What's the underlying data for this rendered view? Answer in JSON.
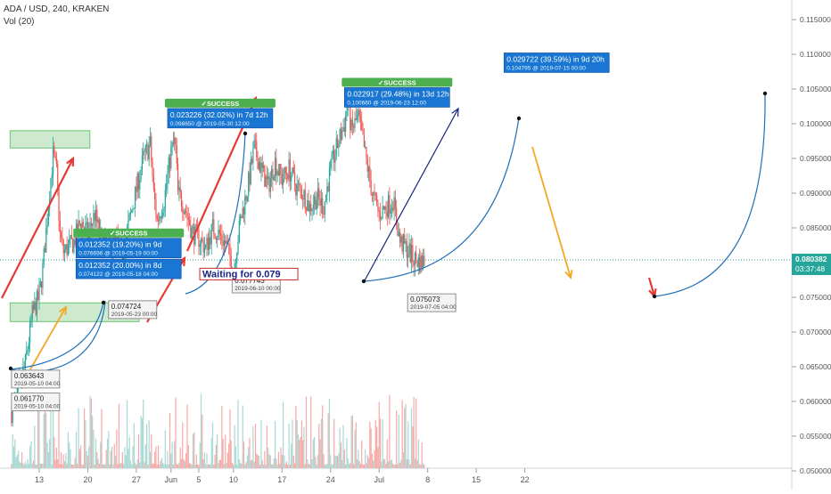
{
  "header": {
    "symbol": "ADA / USD, 240, KRAKEN",
    "indicator": "Vol (20)"
  },
  "chart_data": {
    "type": "candlestick",
    "x_ticks": [
      {
        "day": 13,
        "label": "13"
      },
      {
        "day": 20,
        "label": "20"
      },
      {
        "day": 27,
        "label": "27"
      },
      {
        "day": 32,
        "label": "Jun"
      },
      {
        "day": 36,
        "label": "5"
      },
      {
        "day": 41,
        "label": "10"
      },
      {
        "day": 48,
        "label": "17"
      },
      {
        "day": 55,
        "label": "24"
      },
      {
        "day": 62,
        "label": "Jul"
      },
      {
        "day": 69,
        "label": "8"
      },
      {
        "day": 76,
        "label": "15"
      },
      {
        "day": 83,
        "label": "22"
      }
    ],
    "y_ticks": [
      "0.050000",
      "0.055000",
      "0.060000",
      "0.065000",
      "0.070000",
      "0.075000",
      "0.080000",
      "0.085000",
      "0.090000",
      "0.095000",
      "0.100000",
      "0.105000",
      "0.110000",
      "0.115000"
    ],
    "ylim": [
      0.0496,
      0.1175
    ],
    "current_price": "0.080382",
    "countdown": "03:37:48",
    "colors": {
      "up": "#26a69a",
      "down": "#ef5350",
      "vol_up": "#a8d8d3",
      "vol_down": "#f6a9a7"
    },
    "price_path": [
      [
        9.0,
        0.0585
      ],
      [
        10.0,
        0.0615
      ],
      [
        11.0,
        0.0655
      ],
      [
        12.0,
        0.0725
      ],
      [
        13.0,
        0.0752
      ],
      [
        13.5,
        0.079
      ],
      [
        14.0,
        0.0845
      ],
      [
        14.5,
        0.0905
      ],
      [
        15.0,
        0.0955
      ],
      [
        15.5,
        0.093
      ],
      [
        16.0,
        0.084
      ],
      [
        16.5,
        0.0815
      ],
      [
        17.0,
        0.082
      ],
      [
        18.0,
        0.083
      ],
      [
        19.0,
        0.086
      ],
      [
        20.0,
        0.084
      ],
      [
        21.0,
        0.087
      ],
      [
        22.0,
        0.083
      ],
      [
        23.0,
        0.082
      ],
      [
        24.0,
        0.0835
      ],
      [
        25.0,
        0.081
      ],
      [
        26.0,
        0.086
      ],
      [
        27.0,
        0.0905
      ],
      [
        28.0,
        0.095
      ],
      [
        29.0,
        0.097
      ],
      [
        29.5,
        0.09
      ],
      [
        30.0,
        0.086
      ],
      [
        31.0,
        0.089
      ],
      [
        32.0,
        0.096
      ],
      [
        32.6,
        0.0975
      ],
      [
        33.0,
        0.09
      ],
      [
        34.0,
        0.088
      ],
      [
        35.0,
        0.0845
      ],
      [
        36.0,
        0.0835
      ],
      [
        37.0,
        0.082
      ],
      [
        38.0,
        0.085
      ],
      [
        39.0,
        0.084
      ],
      [
        40.0,
        0.0825
      ],
      [
        41.0,
        0.079
      ],
      [
        42.0,
        0.086
      ],
      [
        43.0,
        0.0905
      ],
      [
        44.0,
        0.0965
      ],
      [
        45.0,
        0.0935
      ],
      [
        46.0,
        0.091
      ],
      [
        47.0,
        0.0945
      ],
      [
        48.0,
        0.092
      ],
      [
        49.0,
        0.0935
      ],
      [
        50.0,
        0.091
      ],
      [
        51.0,
        0.09
      ],
      [
        52.0,
        0.088
      ],
      [
        53.0,
        0.0895
      ],
      [
        54.0,
        0.088
      ],
      [
        55.0,
        0.0935
      ],
      [
        56.0,
        0.097
      ],
      [
        57.0,
        0.1
      ],
      [
        57.5,
        0.103
      ],
      [
        58.0,
        0.099
      ],
      [
        59.0,
        0.101
      ],
      [
        60.0,
        0.0955
      ],
      [
        61.0,
        0.09
      ],
      [
        62.0,
        0.087
      ],
      [
        63.0,
        0.088
      ],
      [
        64.0,
        0.089
      ],
      [
        65.0,
        0.083
      ],
      [
        66.0,
        0.082
      ],
      [
        67.0,
        0.0805
      ],
      [
        68.0,
        0.08
      ],
      [
        68.5,
        0.0804
      ]
    ],
    "boxes": [
      {
        "d1": 8.8,
        "d2": 20.3,
        "p1": 0.0965,
        "p2": 0.099
      },
      {
        "d1": 8.8,
        "d2": 27.4,
        "p1": 0.0715,
        "p2": 0.0742
      }
    ],
    "labels": [
      {
        "d": 9.0,
        "p": 0.0645,
        "text": "0.063643",
        "sub": "2019-05-10 04:00"
      },
      {
        "d": 9.0,
        "p": 0.0612,
        "text": "0.061770",
        "sub": "2019-05-10 04:00"
      },
      {
        "d": 23.0,
        "p": 0.0745,
        "text": "0.074724",
        "sub": "2019-05-23 00:00"
      },
      {
        "d": 40.8,
        "p": 0.0782,
        "text": "0.077743",
        "sub": "2019-06-10 00:00"
      },
      {
        "d": 66.1,
        "p": 0.0755,
        "text": "0.075073",
        "sub": "2019-07-05 04:00"
      }
    ],
    "targets": [
      {
        "d": 18.3,
        "p": 0.0835,
        "line1": "0.012352 (19.20%) in 9d",
        "line2": "0.076696 @ 2019-05-19 00:00",
        "status": "✓SUCCESS"
      },
      {
        "d": 18.3,
        "p": 0.0805,
        "line1": "0.012352 (20.00%) in 8d",
        "line2": "0.074122 @ 2019-05-18 04:00"
      },
      {
        "d": 31.5,
        "p": 0.1022,
        "line1": "0.023226 (32.02%) in 7d 12h",
        "line2": "0.098650 @ 2019-05-30 12:00",
        "status": "✓SUCCESS"
      },
      {
        "d": 57.0,
        "p": 0.1052,
        "line1": "0.022917 (29.48%) in 13d 12h",
        "line2": "0.100660 @ 2019-06-23 12:00",
        "status": "✓SUCCESS"
      },
      {
        "d": 80.0,
        "p": 0.1102,
        "line1": "0.029722 (39.59%) in 9d 20h",
        "line2": "0.104795 @ 2019-07-15 00:00"
      }
    ],
    "waiting_text": "Waiting for 0.079"
  }
}
